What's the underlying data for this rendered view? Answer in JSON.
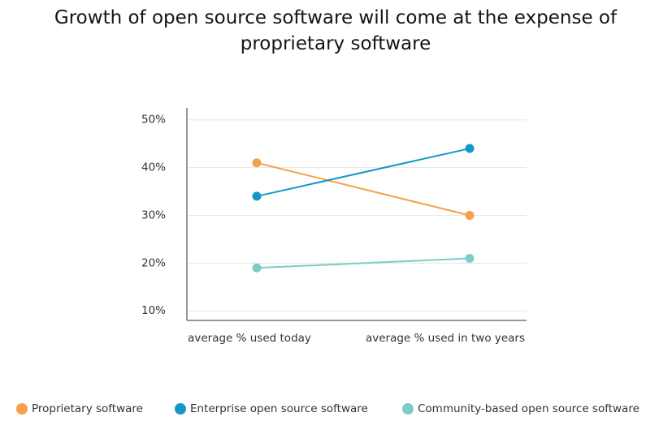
{
  "chart_data": {
    "type": "line",
    "title": "Growth of open source software will come at the expense of proprietary software",
    "categories": [
      "average % used today",
      "average % used in two years"
    ],
    "series": [
      {
        "name": "Proprietary software",
        "color": "#f5a04a",
        "values": [
          41,
          30
        ]
      },
      {
        "name": "Enterprise open source software",
        "color": "#1497c7",
        "values": [
          34,
          44
        ]
      },
      {
        "name": "Community-based open source software",
        "color": "#7ecbc8",
        "values": [
          19,
          21
        ]
      }
    ],
    "ylim": [
      8,
      52.5
    ],
    "yticks": [
      {
        "value": 10,
        "label": "10%"
      },
      {
        "value": 20,
        "label": "20%"
      },
      {
        "value": 30,
        "label": "30%"
      },
      {
        "value": 40,
        "label": "40%"
      },
      {
        "value": 50,
        "label": "50%"
      }
    ],
    "grid": true
  }
}
